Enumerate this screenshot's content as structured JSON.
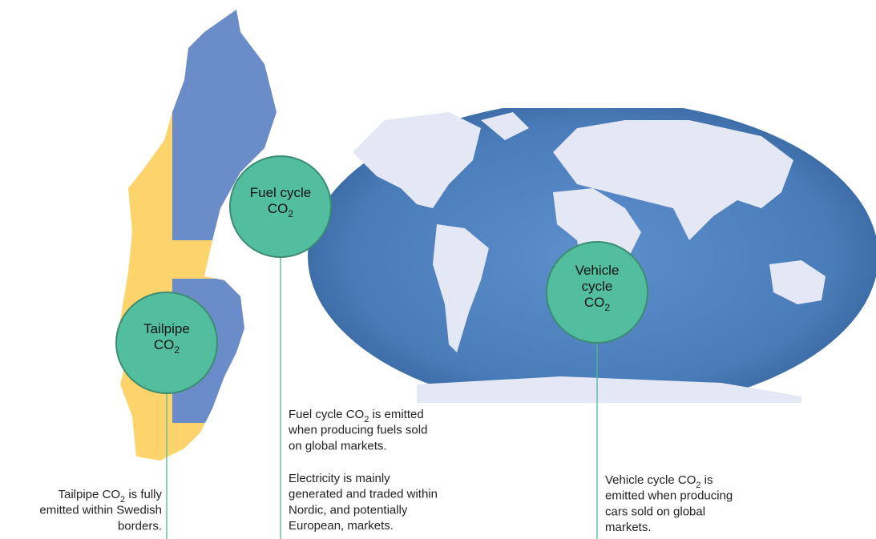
{
  "nodes": [
    {
      "lines": [
        {
          "text": "Tailpipe"
        },
        {
          "text": "CO",
          "sub": "2"
        }
      ],
      "paragraphs": [
        [
          {
            "text": "Tailpipe CO",
            "sub": "2",
            "after": " is fully"
          },
          {
            "text": "emitted within Swedish"
          },
          {
            "text": "borders."
          }
        ]
      ]
    },
    {
      "lines": [
        {
          "text": "Fuel cycle"
        },
        {
          "text": "CO",
          "sub": "2"
        }
      ],
      "paragraphs": [
        [
          {
            "text": "Fuel cycle CO",
            "sub": "2",
            "after": " is emitted"
          },
          {
            "text": "when producing fuels sold"
          },
          {
            "text": "on global markets."
          }
        ],
        [
          {
            "text": "Electricity is mainly"
          },
          {
            "text": "generated and traded within"
          },
          {
            "text": "Nordic, and potentially"
          },
          {
            "text": "European, markets."
          }
        ]
      ]
    },
    {
      "lines": [
        {
          "text": "Vehicle"
        },
        {
          "text": "cycle"
        },
        {
          "text": "CO",
          "sub": "2"
        }
      ],
      "paragraphs": [
        [
          {
            "text": "Vehicle cycle CO",
            "sub": "2",
            "after": " is"
          },
          {
            "text": "emitted when producing"
          },
          {
            "text": "cars sold on global"
          },
          {
            "text": "markets."
          }
        ]
      ]
    }
  ]
}
